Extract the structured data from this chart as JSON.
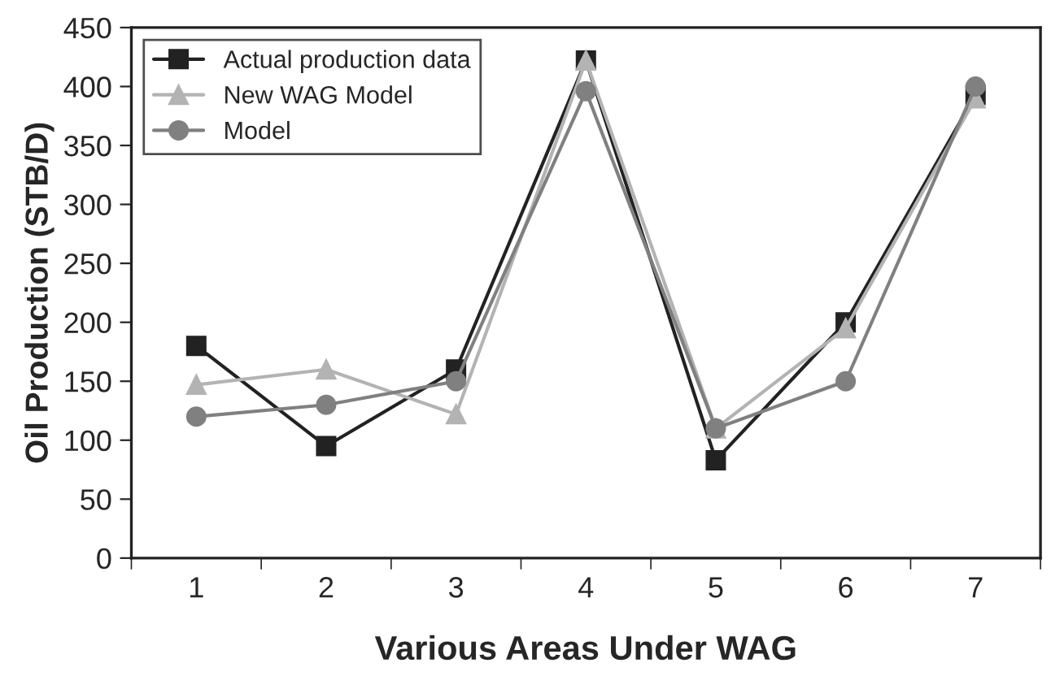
{
  "chart_data": {
    "type": "line",
    "xlabel": "Various Areas Under WAG",
    "ylabel": "Oil Production (STB/D)",
    "categories": [
      "1",
      "2",
      "3",
      "4",
      "5",
      "6",
      "7"
    ],
    "series": [
      {
        "name": "Actual production data",
        "color": "#222222",
        "marker": "square",
        "values": [
          180,
          95,
          160,
          422,
          83,
          200,
          393
        ]
      },
      {
        "name": "New WAG Model",
        "color": "#b3b3b3",
        "marker": "triangle",
        "values": [
          147,
          160,
          122,
          422,
          110,
          195,
          390
        ]
      },
      {
        "name": "Model",
        "color": "#808080",
        "marker": "circle",
        "values": [
          120,
          130,
          150,
          396,
          110,
          150,
          400
        ]
      }
    ],
    "ylim": [
      0,
      450
    ],
    "yticks": [
      0,
      50,
      100,
      150,
      200,
      250,
      300,
      350,
      400,
      450
    ],
    "grid": false,
    "legend": "top left"
  }
}
